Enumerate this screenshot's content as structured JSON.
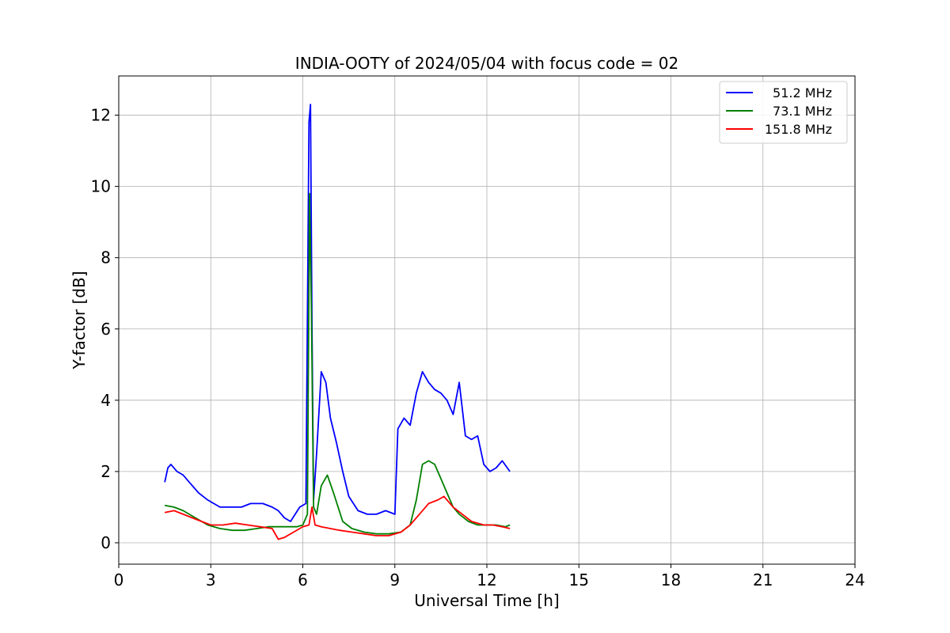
{
  "chart_data": {
    "type": "line",
    "title": "INDIA-OOTY of 2024/05/04 with focus code = 02",
    "xlabel": "Universal Time [h]",
    "ylabel": "Y-factor [dB]",
    "xlim": [
      0,
      24
    ],
    "ylim": [
      -0.6,
      13.1
    ],
    "xticks": [
      0,
      3,
      6,
      9,
      12,
      15,
      18,
      21,
      24
    ],
    "yticks": [
      0,
      2,
      4,
      6,
      8,
      10,
      12
    ],
    "grid": true,
    "legend_position": "top-right",
    "series": [
      {
        "name": "51.2 MHz",
        "color": "#0000ff",
        "x": [
          1.5,
          1.6,
          1.7,
          1.9,
          2.1,
          2.3,
          2.6,
          2.9,
          3.1,
          3.3,
          3.5,
          3.75,
          4.0,
          4.3,
          4.7,
          5.0,
          5.2,
          5.4,
          5.6,
          5.9,
          6.1,
          6.2,
          6.25,
          6.3,
          6.35,
          6.45,
          6.6,
          6.75,
          6.9,
          7.1,
          7.3,
          7.5,
          7.8,
          8.1,
          8.4,
          8.7,
          9.0,
          9.1,
          9.3,
          9.5,
          9.7,
          9.9,
          10.1,
          10.3,
          10.5,
          10.7,
          10.9,
          11.1,
          11.3,
          11.5,
          11.7,
          11.9,
          12.1,
          12.3,
          12.5,
          12.75
        ],
        "y": [
          1.7,
          2.1,
          2.2,
          2.0,
          1.9,
          1.7,
          1.4,
          1.2,
          1.1,
          1.0,
          1.0,
          1.0,
          1.0,
          1.1,
          1.1,
          1.0,
          0.9,
          0.7,
          0.6,
          1.0,
          1.1,
          11.8,
          12.3,
          6.0,
          1.2,
          2.5,
          4.8,
          4.5,
          3.5,
          2.8,
          2.0,
          1.3,
          0.9,
          0.8,
          0.8,
          0.9,
          0.8,
          3.2,
          3.5,
          3.3,
          4.2,
          4.8,
          4.5,
          4.3,
          4.2,
          4.0,
          3.6,
          4.5,
          3.0,
          2.9,
          3.0,
          2.2,
          2.0,
          2.1,
          2.3,
          2.0
        ]
      },
      {
        "name": "73.1 MHz",
        "color": "#008000",
        "x": [
          1.5,
          1.8,
          2.1,
          2.5,
          2.9,
          3.3,
          3.7,
          4.1,
          4.5,
          4.9,
          5.2,
          5.5,
          5.8,
          6.0,
          6.15,
          6.22,
          6.28,
          6.35,
          6.45,
          6.6,
          6.8,
          7.0,
          7.3,
          7.6,
          8.0,
          8.4,
          8.8,
          9.2,
          9.5,
          9.7,
          9.9,
          10.1,
          10.3,
          10.5,
          10.7,
          10.9,
          11.1,
          11.4,
          11.7,
          12.0,
          12.3,
          12.6,
          12.75
        ],
        "y": [
          1.05,
          1.0,
          0.9,
          0.7,
          0.5,
          0.4,
          0.35,
          0.35,
          0.4,
          0.45,
          0.45,
          0.45,
          0.45,
          0.5,
          0.8,
          9.8,
          6.5,
          1.0,
          0.8,
          1.6,
          1.9,
          1.4,
          0.6,
          0.4,
          0.3,
          0.25,
          0.25,
          0.3,
          0.5,
          1.2,
          2.2,
          2.3,
          2.2,
          1.8,
          1.4,
          1.0,
          0.8,
          0.6,
          0.5,
          0.5,
          0.5,
          0.45,
          0.5
        ]
      },
      {
        "name": "151.8 MHz",
        "color": "#ff0000",
        "x": [
          1.5,
          1.8,
          2.1,
          2.4,
          2.7,
          3.0,
          3.4,
          3.8,
          4.2,
          4.6,
          5.0,
          5.2,
          5.4,
          5.7,
          6.0,
          6.2,
          6.3,
          6.4,
          6.6,
          6.9,
          7.2,
          7.6,
          8.0,
          8.4,
          8.8,
          9.2,
          9.5,
          9.8,
          10.1,
          10.4,
          10.6,
          10.9,
          11.2,
          11.5,
          11.9,
          12.2,
          12.5,
          12.75
        ],
        "y": [
          0.85,
          0.9,
          0.8,
          0.7,
          0.6,
          0.5,
          0.5,
          0.55,
          0.5,
          0.45,
          0.4,
          0.1,
          0.15,
          0.3,
          0.45,
          0.5,
          1.0,
          0.5,
          0.45,
          0.4,
          0.35,
          0.3,
          0.25,
          0.2,
          0.2,
          0.3,
          0.5,
          0.8,
          1.1,
          1.2,
          1.3,
          1.0,
          0.8,
          0.6,
          0.5,
          0.5,
          0.45,
          0.4
        ]
      }
    ]
  }
}
